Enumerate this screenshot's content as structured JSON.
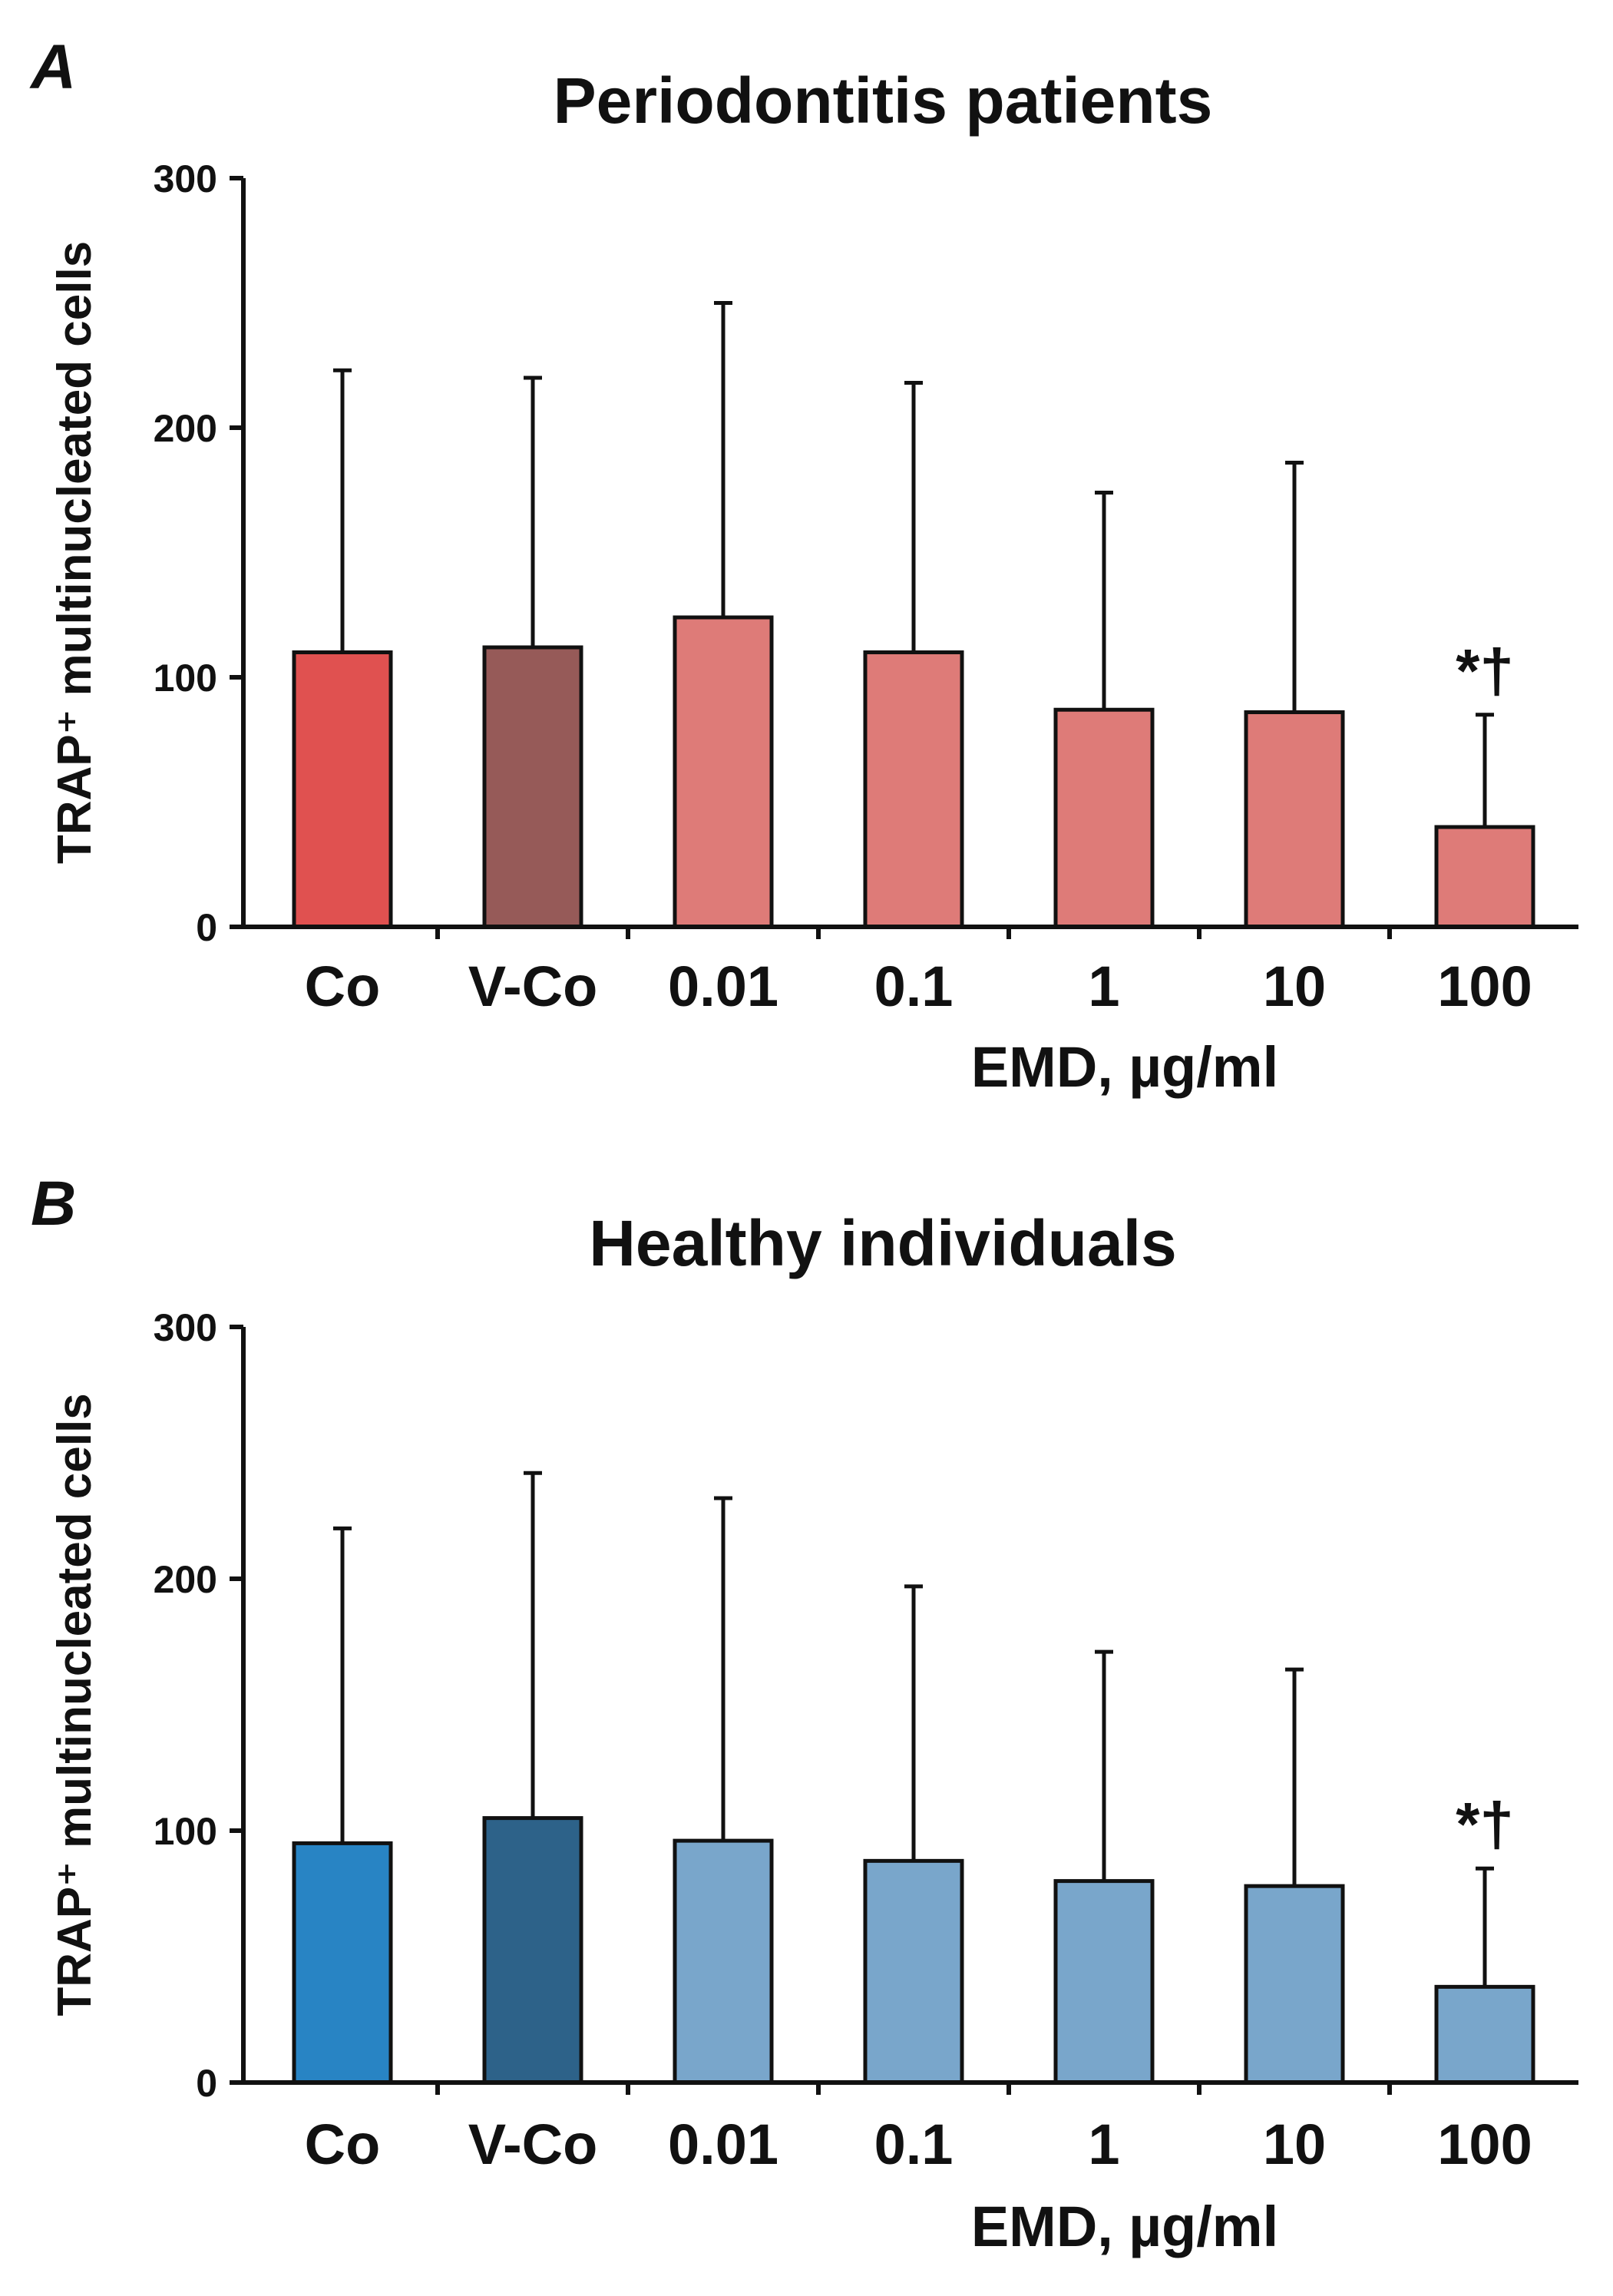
{
  "chart_data": [
    {
      "type": "bar",
      "panel_label": "A",
      "title": "Periodontitis patients",
      "ylabel": "TRAP⁺ multinucleated cells",
      "xlabel": "EMD, µg/ml",
      "ylim": [
        0,
        300
      ],
      "yticks": [
        0,
        100,
        200,
        300
      ],
      "categories": [
        "Co",
        "V-Co",
        "0.01",
        "0.1",
        "1",
        "10",
        "100"
      ],
      "values": [
        110,
        112,
        124,
        110,
        87,
        86,
        40
      ],
      "error_upper": [
        223,
        220,
        250,
        218,
        174,
        186,
        85
      ],
      "colors": [
        "#e05150",
        "#965a58",
        "#de7b78",
        "#de7b78",
        "#de7b78",
        "#de7b78",
        "#de7b78"
      ],
      "annotations": [
        {
          "category": "100",
          "text": "*†"
        }
      ],
      "grid": false,
      "legend": "none"
    },
    {
      "type": "bar",
      "panel_label": "B",
      "title": "Healthy individuals",
      "ylabel": "TRAP⁺ multinucleated cells",
      "xlabel": "EMD, µg/ml",
      "ylim": [
        0,
        300
      ],
      "yticks": [
        0,
        100,
        200,
        300
      ],
      "categories": [
        "Co",
        "V-Co",
        "0.01",
        "0.1",
        "1",
        "10",
        "100"
      ],
      "values": [
        95,
        105,
        96,
        88,
        80,
        78,
        38
      ],
      "error_upper": [
        220,
        242,
        232,
        197,
        171,
        164,
        85
      ],
      "colors": [
        "#2884c4",
        "#2d6289",
        "#79a6cb",
        "#79a6cb",
        "#79a6cb",
        "#79a6cb",
        "#79a6cb"
      ],
      "annotations": [
        {
          "category": "100",
          "text": "*†"
        }
      ],
      "grid": false,
      "legend": "none"
    }
  ]
}
